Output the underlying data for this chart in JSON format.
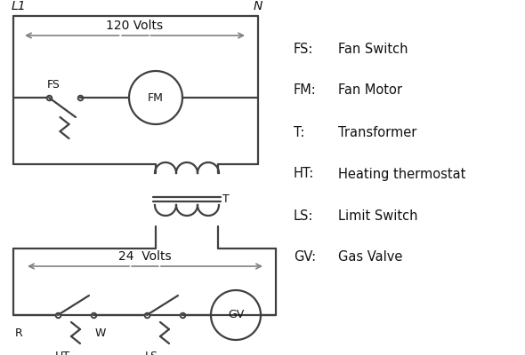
{
  "bg_color": "#ffffff",
  "line_color": "#404040",
  "text_color": "#111111",
  "lw": 1.6,
  "fig_w": 5.9,
  "fig_h": 4.0,
  "dpi": 100,
  "legend_entries": [
    [
      "FS:",
      "Fan Switch"
    ],
    [
      "FM:",
      "Fan Motor"
    ],
    [
      "T:",
      "Transformer"
    ],
    [
      "HT:",
      "Heating thermostat"
    ],
    [
      "LS:",
      "Limit Switch"
    ],
    [
      "GV:",
      "Gas Valve"
    ]
  ],
  "arrow_color": "#808080"
}
